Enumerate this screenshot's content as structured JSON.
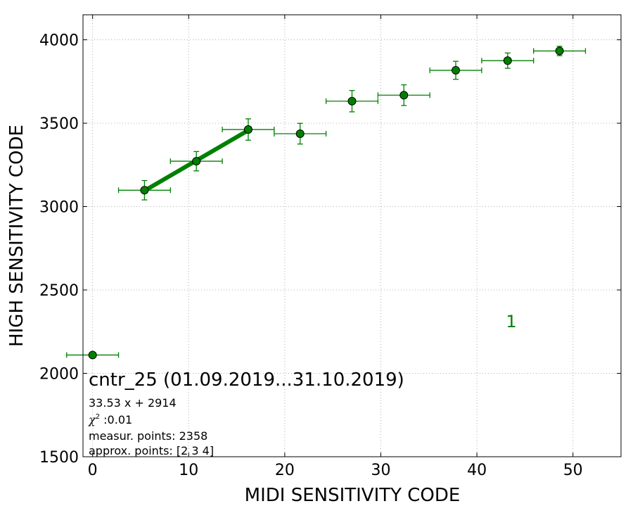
{
  "chart_data": {
    "type": "scatter",
    "xlabel": "MIDI SENSITIVITY CODE",
    "ylabel": "HIGH SENSITIVITY CODE",
    "xlim": [
      -1,
      55
    ],
    "ylim": [
      1500,
      4150
    ],
    "xticks": [
      0,
      10,
      20,
      30,
      40,
      50
    ],
    "yticks": [
      1500,
      2000,
      2500,
      3000,
      3500,
      4000
    ],
    "grid": true,
    "color": "#008000",
    "points": [
      {
        "x": 0.0,
        "y": 2110,
        "xerr": 2.7,
        "yerr": 0
      },
      {
        "x": 5.4,
        "y": 3098,
        "xerr": 2.7,
        "yerr": 58
      },
      {
        "x": 10.8,
        "y": 3272,
        "xerr": 2.7,
        "yerr": 58
      },
      {
        "x": 16.2,
        "y": 3462,
        "xerr": 2.7,
        "yerr": 64
      },
      {
        "x": 21.6,
        "y": 3437,
        "xerr": 2.7,
        "yerr": 62
      },
      {
        "x": 27.0,
        "y": 3632,
        "xerr": 2.7,
        "yerr": 64
      },
      {
        "x": 32.4,
        "y": 3668,
        "xerr": 2.7,
        "yerr": 62
      },
      {
        "x": 37.8,
        "y": 3817,
        "xerr": 2.7,
        "yerr": 54
      },
      {
        "x": 43.2,
        "y": 3875,
        "xerr": 2.7,
        "yerr": 46
      },
      {
        "x": 48.6,
        "y": 3933,
        "xerr": 2.7,
        "yerr": 28
      }
    ],
    "fit": {
      "slope": 33.53,
      "intercept": 2914,
      "x_range": [
        5.4,
        16.2
      ]
    },
    "annotations": {
      "title": "cntr_25 (01.09.2019...31.10.2019)",
      "equation": "33.53 x + 2914",
      "chi_symbol": "χ",
      "chi_exp": "2",
      "chi_value": " :0.01",
      "measur": "measur. points: 2358",
      "approx": "approx. points: [2 3 4]",
      "label_number": "1"
    }
  }
}
